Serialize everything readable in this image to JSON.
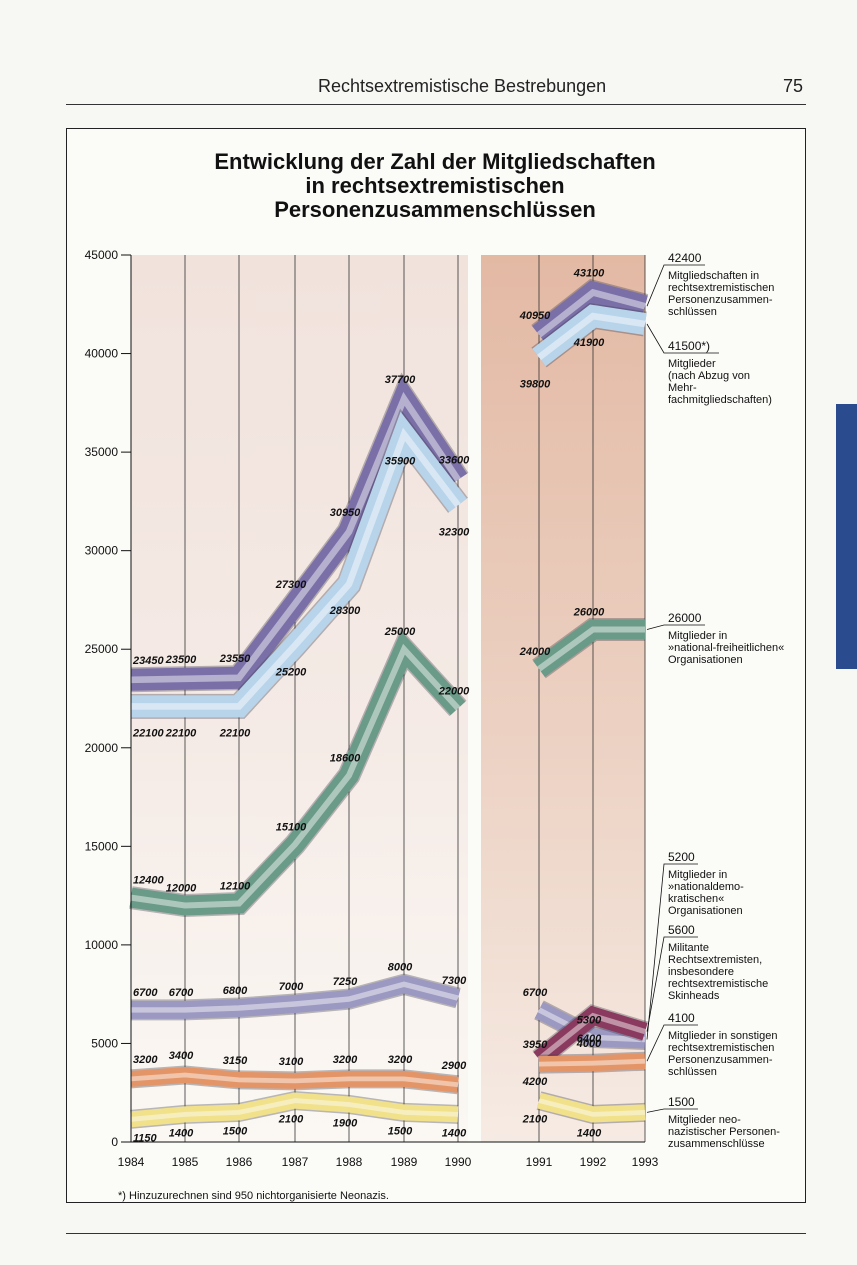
{
  "header": {
    "title": "Rechtsextremistische Bestrebungen",
    "page_number": "75"
  },
  "footnote": "*) Hinzuzurechnen sind 950 nichtorganisierte Neonazis.",
  "chart_data": {
    "type": "line",
    "title": "Entwicklung der Zahl der Mitgliedschaften in rechtsextremistischen Personenzusammenschlüssen",
    "title_lines": [
      "Entwicklung der Zahl der Mitgliedschaften",
      "in rechtsextremistischen",
      "Personenzusammenschlüssen"
    ],
    "x": [
      "1984",
      "1985",
      "1986",
      "1987",
      "1988",
      "1989",
      "1990",
      "1991",
      "1992",
      "1993"
    ],
    "y_ticks": [
      "0",
      "5000",
      "10000",
      "15000",
      "20000",
      "25000",
      "30000",
      "35000",
      "40000",
      "45000"
    ],
    "ylim": [
      0,
      45000
    ],
    "gap_after": "1990",
    "series": [
      {
        "name": "Mitgliedschaften",
        "color": "#7b6fa8",
        "values": [
          23450,
          23500,
          23550,
          27300,
          30950,
          37700,
          33600,
          40950,
          43100,
          42400
        ],
        "labels": [
          "23450",
          "23500",
          "23550",
          "27300",
          "30950",
          "37700",
          "33600",
          "40950",
          "43100",
          ""
        ]
      },
      {
        "name": "Mitglieder",
        "color": "#b8d4ea",
        "values": [
          22100,
          22100,
          22100,
          25200,
          28300,
          35900,
          32300,
          39800,
          41900,
          41500
        ],
        "labels": [
          "22100",
          "22100",
          "22100",
          "25200",
          "28300",
          "35900",
          "32300",
          "39800",
          "41900",
          ""
        ]
      },
      {
        "name": "national-freiheitlich",
        "color": "#6a9a88",
        "values": [
          12400,
          12000,
          12100,
          15100,
          18600,
          25000,
          22000,
          24000,
          26000,
          26000
        ],
        "labels": [
          "12400",
          "12000",
          "12100",
          "15100",
          "18600",
          "25000",
          "22000",
          "24000",
          "26000",
          ""
        ]
      },
      {
        "name": "nationaldemokratisch",
        "color": "#9b98c2",
        "values": [
          6700,
          6700,
          6800,
          7000,
          7250,
          8000,
          7300,
          6700,
          5300,
          5200
        ],
        "labels": [
          "6700",
          "6700",
          "6800",
          "7000",
          "7250",
          "8000",
          "7300",
          "6700",
          "5300",
          ""
        ]
      },
      {
        "name": "Militante",
        "color": "#8a3a5e",
        "values": [
          null,
          null,
          null,
          null,
          null,
          null,
          null,
          4200,
          6400,
          5600
        ],
        "labels": [
          "",
          "",
          "",
          "",
          "",
          "",
          "",
          "4200",
          "6400",
          ""
        ]
      },
      {
        "name": "sonstige",
        "color": "#e49568",
        "values": [
          3200,
          3400,
          3150,
          3100,
          3200,
          3200,
          2900,
          3950,
          4000,
          4100
        ],
        "labels": [
          "3200",
          "3400",
          "3150",
          "3100",
          "3200",
          "3200",
          "2900",
          "3950",
          "4000",
          ""
        ]
      },
      {
        "name": "neonazistisch",
        "color": "#f1e18a",
        "values": [
          1150,
          1400,
          1500,
          2100,
          1900,
          1500,
          1400,
          2100,
          1400,
          1500
        ],
        "labels": [
          "1150",
          "1400",
          "1500",
          "2100",
          "1900",
          "1500",
          "1400",
          "2100",
          "1400",
          ""
        ]
      }
    ],
    "legend": [
      {
        "value": "42400",
        "lines": [
          "Mitgliedschaften in",
          "rechtsextremistischen",
          "Personenzusammen-",
          "schlüssen"
        ]
      },
      {
        "value": "41500*)",
        "lines": [
          "Mitglieder",
          "(nach Abzug von",
          "Mehr-",
          "fachmitgliedschaften)"
        ]
      },
      {
        "value": "26000",
        "lines": [
          "Mitglieder in",
          "»national-freiheitlichen«",
          "Organisationen"
        ]
      },
      {
        "value": "5200",
        "lines": [
          "Mitglieder in",
          "»nationaldemo-",
          "kratischen«",
          "Organisationen"
        ]
      },
      {
        "value": "5600",
        "lines": [
          "Militante",
          "Rechtsextremisten,",
          "insbesondere",
          "rechtsextremistische",
          "Skinheads"
        ]
      },
      {
        "value": "4100",
        "lines": [
          "Mitglieder in sonstigen",
          "rechtsextremistischen",
          "Personenzusammen-",
          "schlüssen"
        ]
      },
      {
        "value": "1500",
        "lines": [
          "Mitglieder neo-",
          "nazistischer Personen-",
          "zusammenschlüsse"
        ]
      }
    ]
  }
}
